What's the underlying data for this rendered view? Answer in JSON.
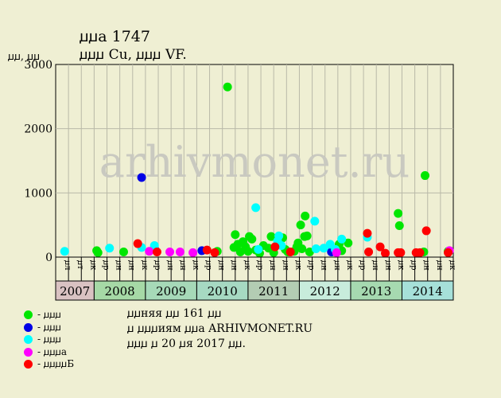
{
  "header": {
    "title": "ꙡꙡa 1747",
    "subtitle": "ꙡꙡꙡ Cu, ꙡꙡꙡ VF.",
    "y_unit": "ꙡꙡ, ꙡꙡ"
  },
  "legend": [
    {
      "label": "- ꙡꙡꙡ",
      "color": "#00e600"
    },
    {
      "label": "- ꙡꙡꙡ",
      "color": "#0000e6"
    },
    {
      "label": "- ꙡꙡꙡ",
      "color": "#00ffff"
    },
    {
      "label": "- ꙡꙡꙡa",
      "color": "#ff00ff"
    },
    {
      "label": "- ꙡꙡꙡꙡБ",
      "color": "#ff0000"
    }
  ],
  "notes": [
    "ꙡꙡняя ꙡꙡ 161 ꙡꙡ",
    "ꙡ ꙡꙡꙡиям ꙡꙡa ARHIVMONET.RU",
    "ꙡꙡꙡ ꙡ 20 ꙡя 2017 ꙡꙡ."
  ],
  "watermark": "arhivmonet.ru",
  "chart_data": {
    "type": "scatter",
    "ylim": [
      0,
      3000
    ],
    "yticks": [
      0,
      1000,
      2000,
      3000
    ],
    "months": [
      "ꙡл",
      "ꙡт",
      "ꙡк",
      "ꙡр",
      "ꙡн",
      "ꙡн",
      "ꙡк",
      "ꙡр",
      "ꙡн",
      "ꙡн",
      "ꙡк",
      "ꙡр",
      "ꙡн",
      "ꙡн",
      "ꙡк",
      "ꙡр",
      "ꙡн",
      "ꙡн",
      "ꙡк",
      "ꙡр",
      "ꙡн",
      "ꙡн",
      "ꙡк",
      "ꙡр",
      "ꙡн",
      "ꙡн",
      "ꙡк",
      "ꙡр",
      "ꙡн",
      "ꙡн",
      "ꙡк"
    ],
    "years": [
      {
        "label": "2007",
        "span": 3,
        "color": "#d9c2c2"
      },
      {
        "label": "2008",
        "span": 4,
        "color": "#a6d9a6"
      },
      {
        "label": "2009",
        "span": 4,
        "color": "#a6d9b8"
      },
      {
        "label": "2010",
        "span": 4,
        "color": "#a6d9c2"
      },
      {
        "label": "2011",
        "span": 4,
        "color": "#b3ccb3"
      },
      {
        "label": "2012",
        "span": 4,
        "color": "#c8ecdc"
      },
      {
        "label": "2013",
        "span": 4,
        "color": "#a6d9b0"
      },
      {
        "label": "2014",
        "span": 4,
        "color": "#a6e0d9"
      }
    ],
    "series": [
      {
        "color": "#00e600",
        "points": [
          [
            2.7,
            100
          ],
          [
            2.8,
            70
          ],
          [
            4.8,
            80
          ],
          [
            12.1,
            90
          ],
          [
            12.9,
            2650
          ],
          [
            13.4,
            150
          ],
          [
            13.5,
            350
          ],
          [
            13.7,
            200
          ],
          [
            13.9,
            80
          ],
          [
            14.1,
            240
          ],
          [
            14.3,
            160
          ],
          [
            14.5,
            90
          ],
          [
            14.6,
            320
          ],
          [
            14.8,
            280
          ],
          [
            15.1,
            110
          ],
          [
            15.4,
            60
          ],
          [
            15.7,
            180
          ],
          [
            16.1,
            140
          ],
          [
            16.3,
            320
          ],
          [
            16.5,
            70
          ],
          [
            16.9,
            210
          ],
          [
            17.2,
            300
          ],
          [
            17.4,
            120
          ],
          [
            17.6,
            80
          ],
          [
            18.1,
            90
          ],
          [
            18.3,
            160
          ],
          [
            18.4,
            220
          ],
          [
            18.6,
            500
          ],
          [
            18.7,
            130
          ],
          [
            18.9,
            320
          ],
          [
            18.95,
            640
          ],
          [
            19.1,
            330
          ],
          [
            19.3,
            80
          ],
          [
            21.6,
            200
          ],
          [
            21.8,
            100
          ],
          [
            22.3,
            220
          ],
          [
            26.2,
            680
          ],
          [
            26.3,
            490
          ],
          [
            28.3,
            1270
          ],
          [
            28.2,
            80
          ],
          [
            30.1,
            90
          ]
        ]
      },
      {
        "color": "#0000e6",
        "points": [
          [
            6.2,
            1240
          ],
          [
            7.2,
            140
          ],
          [
            10.9,
            100
          ],
          [
            21.0,
            80
          ]
        ]
      },
      {
        "color": "#00ffff",
        "points": [
          [
            0.2,
            90
          ],
          [
            3.7,
            140
          ],
          [
            6.2,
            150
          ],
          [
            7.2,
            180
          ],
          [
            15.1,
            770
          ],
          [
            15.3,
            120
          ],
          [
            16.8,
            250
          ],
          [
            16.9,
            330
          ],
          [
            17.1,
            180
          ],
          [
            19.7,
            560
          ],
          [
            19.8,
            130
          ],
          [
            20.4,
            140
          ],
          [
            20.9,
            200
          ],
          [
            21.3,
            120
          ],
          [
            21.8,
            280
          ],
          [
            23.8,
            310
          ]
        ]
      },
      {
        "color": "#ff00ff",
        "points": [
          [
            6.8,
            90
          ],
          [
            8.4,
            80
          ],
          [
            9.2,
            80
          ],
          [
            10.2,
            70
          ],
          [
            21.4,
            70
          ],
          [
            30.2,
            100
          ]
        ]
      },
      {
        "color": "#ff0000",
        "points": [
          [
            5.9,
            210
          ],
          [
            7.4,
            80
          ],
          [
            11.3,
            110
          ],
          [
            11.9,
            70
          ],
          [
            16.6,
            160
          ],
          [
            17.8,
            80
          ],
          [
            23.8,
            370
          ],
          [
            23.9,
            80
          ],
          [
            24.8,
            160
          ],
          [
            25.2,
            60
          ],
          [
            26.2,
            70
          ],
          [
            26.4,
            70
          ],
          [
            27.6,
            70
          ],
          [
            27.9,
            70
          ],
          [
            28.4,
            410
          ],
          [
            30.1,
            70
          ]
        ]
      }
    ]
  }
}
